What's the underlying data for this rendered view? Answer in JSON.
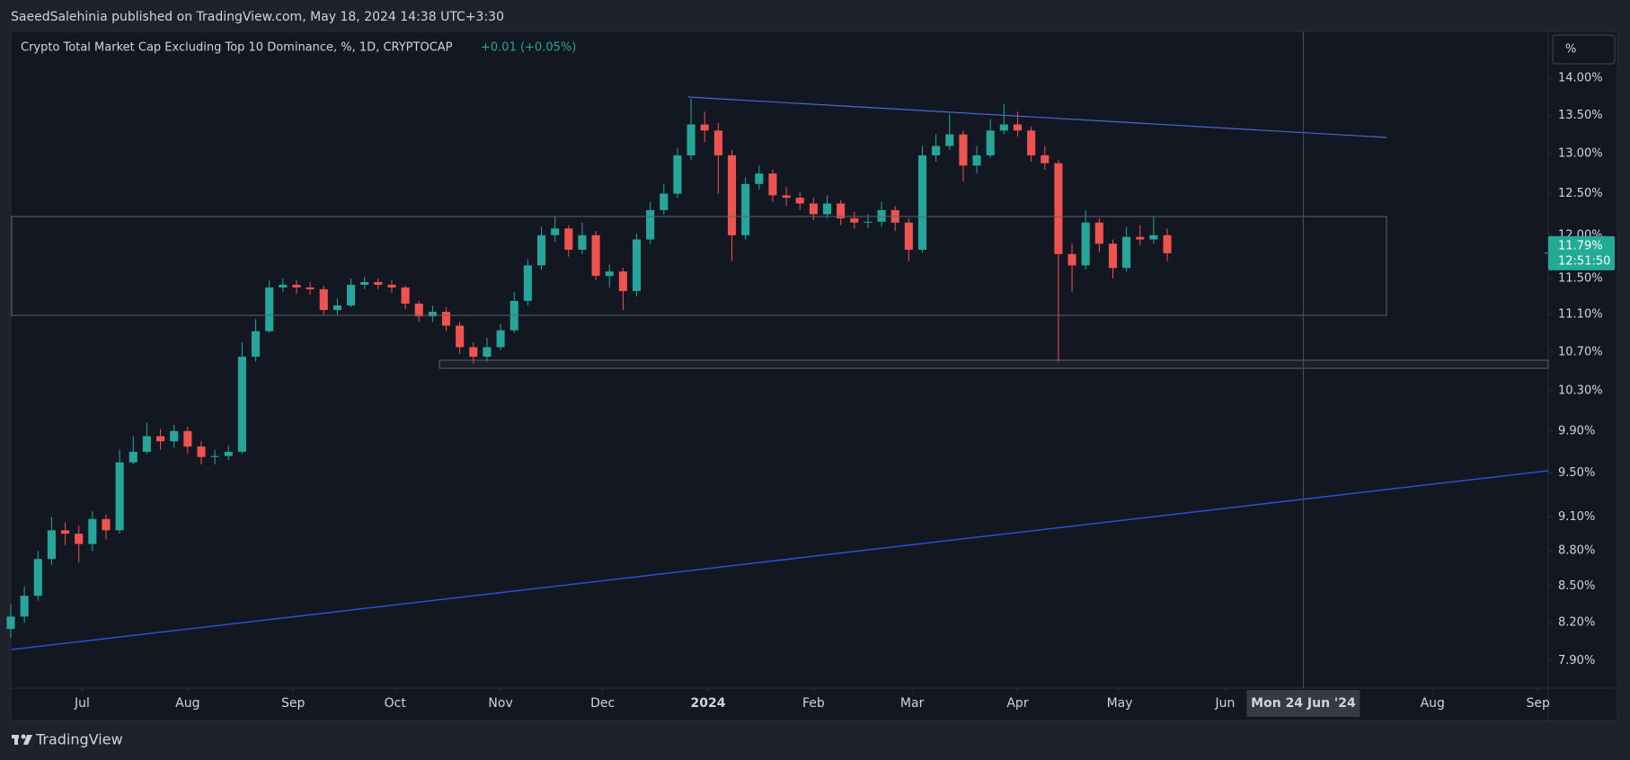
{
  "header": {
    "published": "SaeedSalehinia published on TradingView.com, May 18, 2024 14:38 UTC+3:30"
  },
  "scale_button": "%",
  "footer": {
    "brand": "TradingView"
  },
  "chart_data": {
    "type": "candlestick",
    "title": "Crypto Total Market Cap Excluding Top 10 Dominance, %, 1D, CRYPTOCAP",
    "change": "+0.01 (+0.05%)",
    "up_color": "#26a69a",
    "down_color": "#ef5350",
    "log_scale": true,
    "xlim": [
      "2023-06-10",
      "2024-09-04"
    ],
    "ylim": [
      7.69,
      14.66
    ],
    "x": [
      "2023-06-10",
      "2023-06-14",
      "2023-06-18",
      "2023-06-22",
      "2023-06-26",
      "2023-06-30",
      "2023-07-04",
      "2023-07-08",
      "2023-07-12",
      "2023-07-16",
      "2023-07-20",
      "2023-07-24",
      "2023-07-28",
      "2023-08-01",
      "2023-08-05",
      "2023-08-09",
      "2023-08-13",
      "2023-08-17",
      "2023-08-21",
      "2023-08-25",
      "2023-08-29",
      "2023-09-02",
      "2023-09-06",
      "2023-09-10",
      "2023-09-14",
      "2023-09-18",
      "2023-09-22",
      "2023-09-26",
      "2023-09-30",
      "2023-10-04",
      "2023-10-08",
      "2023-10-12",
      "2023-10-16",
      "2023-10-20",
      "2023-10-24",
      "2023-10-28",
      "2023-11-01",
      "2023-11-05",
      "2023-11-09",
      "2023-11-13",
      "2023-11-17",
      "2023-11-21",
      "2023-11-25",
      "2023-11-29",
      "2023-12-03",
      "2023-12-07",
      "2023-12-11",
      "2023-12-15",
      "2023-12-19",
      "2023-12-23",
      "2023-12-27",
      "2023-12-31",
      "2024-01-04",
      "2024-01-08",
      "2024-01-12",
      "2024-01-16",
      "2024-01-20",
      "2024-01-24",
      "2024-01-28",
      "2024-02-01",
      "2024-02-05",
      "2024-02-09",
      "2024-02-13",
      "2024-02-17",
      "2024-02-21",
      "2024-02-25",
      "2024-02-29",
      "2024-03-04",
      "2024-03-08",
      "2024-03-12",
      "2024-03-16",
      "2024-03-20",
      "2024-03-24",
      "2024-03-28",
      "2024-04-01",
      "2024-04-05",
      "2024-04-09",
      "2024-04-13",
      "2024-04-17",
      "2024-04-21",
      "2024-04-25",
      "2024-04-29",
      "2024-05-03",
      "2024-05-07",
      "2024-05-11",
      "2024-05-15"
    ],
    "open": [
      8.15,
      8.25,
      8.42,
      8.73,
      8.98,
      8.95,
      8.86,
      9.08,
      8.98,
      9.6,
      9.7,
      9.85,
      9.8,
      9.9,
      9.75,
      9.65,
      9.66,
      9.7,
      10.65,
      10.92,
      11.4,
      11.43,
      11.4,
      11.38,
      11.15,
      11.2,
      11.43,
      11.46,
      11.43,
      11.4,
      11.22,
      11.08,
      11.13,
      10.98,
      10.75,
      10.65,
      10.75,
      10.93,
      11.25,
      11.65,
      12.0,
      12.08,
      11.83,
      12.0,
      11.53,
      11.58,
      11.36,
      11.95,
      12.3,
      12.5,
      12.98,
      13.38,
      13.3,
      12.98,
      12.0,
      12.62,
      12.75,
      12.48,
      12.45,
      12.38,
      12.25,
      12.38,
      12.2,
      12.15,
      12.16,
      12.3,
      12.15,
      11.83,
      12.98,
      13.1,
      13.25,
      12.85,
      12.98,
      13.3,
      13.38,
      13.3,
      12.98,
      12.88,
      11.78,
      11.65,
      12.15,
      11.9,
      11.62,
      11.98,
      11.95,
      12.0
    ],
    "high": [
      8.35,
      8.5,
      8.8,
      9.1,
      9.05,
      9.02,
      9.15,
      9.12,
      9.72,
      9.85,
      9.98,
      9.92,
      9.96,
      9.94,
      9.8,
      9.72,
      9.76,
      10.8,
      11.05,
      11.48,
      11.5,
      11.48,
      11.46,
      11.42,
      11.28,
      11.5,
      11.52,
      11.5,
      11.48,
      11.42,
      11.25,
      11.2,
      11.18,
      11.02,
      10.8,
      10.85,
      11.0,
      11.35,
      11.72,
      12.1,
      12.22,
      12.12,
      12.15,
      12.05,
      11.66,
      11.62,
      12.02,
      12.4,
      12.62,
      13.08,
      13.72,
      13.55,
      13.4,
      13.05,
      12.7,
      12.85,
      12.8,
      12.58,
      12.52,
      12.45,
      12.48,
      12.42,
      12.28,
      12.25,
      12.4,
      12.35,
      12.2,
      13.1,
      13.25,
      13.52,
      13.3,
      13.1,
      13.45,
      13.65,
      13.55,
      13.35,
      13.1,
      12.92,
      11.9,
      12.3,
      12.2,
      11.95,
      12.1,
      12.12,
      12.22,
      12.08
    ],
    "low": [
      8.08,
      8.2,
      8.38,
      8.68,
      8.85,
      8.7,
      8.8,
      8.9,
      8.95,
      9.58,
      9.68,
      9.72,
      9.74,
      9.68,
      9.58,
      9.58,
      9.62,
      9.68,
      10.6,
      10.9,
      11.35,
      11.33,
      11.32,
      11.1,
      11.1,
      11.18,
      11.38,
      11.38,
      11.34,
      11.16,
      11.02,
      11.02,
      10.92,
      10.68,
      10.58,
      10.6,
      10.72,
      10.9,
      11.2,
      11.6,
      11.92,
      11.75,
      11.78,
      11.48,
      11.4,
      11.15,
      11.3,
      11.9,
      12.25,
      12.45,
      12.92,
      13.15,
      12.5,
      11.7,
      11.95,
      12.55,
      12.4,
      12.35,
      12.3,
      12.18,
      12.2,
      12.12,
      12.08,
      12.08,
      12.1,
      12.05,
      11.7,
      11.8,
      12.9,
      13.05,
      12.65,
      12.75,
      12.95,
      13.25,
      13.22,
      12.9,
      12.8,
      10.6,
      11.35,
      11.6,
      11.8,
      11.5,
      11.58,
      11.88,
      11.9,
      11.7
    ],
    "close": [
      8.25,
      8.42,
      8.73,
      8.98,
      8.95,
      8.86,
      9.08,
      8.98,
      9.6,
      9.7,
      9.85,
      9.8,
      9.9,
      9.75,
      9.65,
      9.66,
      9.7,
      10.65,
      10.92,
      11.4,
      11.43,
      11.4,
      11.38,
      11.15,
      11.2,
      11.43,
      11.46,
      11.43,
      11.4,
      11.22,
      11.08,
      11.13,
      10.98,
      10.75,
      10.65,
      10.75,
      10.93,
      11.25,
      11.65,
      12.0,
      12.08,
      11.83,
      12.0,
      11.53,
      11.58,
      11.36,
      11.95,
      12.3,
      12.5,
      12.98,
      13.38,
      13.3,
      12.98,
      12.0,
      12.62,
      12.75,
      12.48,
      12.45,
      12.38,
      12.25,
      12.38,
      12.2,
      12.15,
      12.16,
      12.3,
      12.15,
      11.83,
      12.98,
      13.1,
      13.25,
      12.85,
      12.98,
      13.3,
      13.38,
      13.3,
      12.98,
      12.88,
      11.78,
      11.65,
      12.15,
      11.9,
      11.62,
      11.98,
      11.95,
      12.0,
      11.79
    ],
    "xticks": [
      {
        "value": "2023-07-01",
        "label": "Jul"
      },
      {
        "value": "2023-08-01",
        "label": "Aug"
      },
      {
        "value": "2023-09-01",
        "label": "Sep"
      },
      {
        "value": "2023-10-01",
        "label": "Oct"
      },
      {
        "value": "2023-11-01",
        "label": "Nov"
      },
      {
        "value": "2023-12-01",
        "label": "Dec"
      },
      {
        "value": "2024-01-01",
        "label": "2024"
      },
      {
        "value": "2024-02-01",
        "label": "Feb"
      },
      {
        "value": "2024-03-01",
        "label": "Mar"
      },
      {
        "value": "2024-04-01",
        "label": "Apr"
      },
      {
        "value": "2024-05-01",
        "label": "May"
      },
      {
        "value": "2024-06-01",
        "label": "Jun"
      },
      {
        "value": "2024-08-01",
        "label": "Aug"
      },
      {
        "value": "2024-09-01",
        "label": "Sep"
      }
    ],
    "yticks": [
      {
        "value": 14.0,
        "label": "14.00%"
      },
      {
        "value": 13.5,
        "label": "13.50%"
      },
      {
        "value": 13.0,
        "label": "13.00%"
      },
      {
        "value": 12.5,
        "label": "12.50%"
      },
      {
        "value": 12.0,
        "label": "12.00%"
      },
      {
        "value": 11.5,
        "label": "11.50%"
      },
      {
        "value": 11.1,
        "label": "11.10%"
      },
      {
        "value": 10.7,
        "label": "10.70%"
      },
      {
        "value": 10.3,
        "label": "10.30%"
      },
      {
        "value": 9.9,
        "label": "9.90%"
      },
      {
        "value": 9.5,
        "label": "9.50%"
      },
      {
        "value": 9.1,
        "label": "9.10%"
      },
      {
        "value": 8.8,
        "label": "8.80%"
      },
      {
        "value": 8.5,
        "label": "8.50%"
      },
      {
        "value": 8.2,
        "label": "8.20%"
      },
      {
        "value": 7.9,
        "label": "7.90%"
      }
    ],
    "last_price": {
      "value": 11.79,
      "label": "11.79%"
    },
    "countdown": "12:51:50",
    "crosshair": {
      "value": "2024-06-24",
      "label": "Mon 24 Jun '24"
    }
  }
}
